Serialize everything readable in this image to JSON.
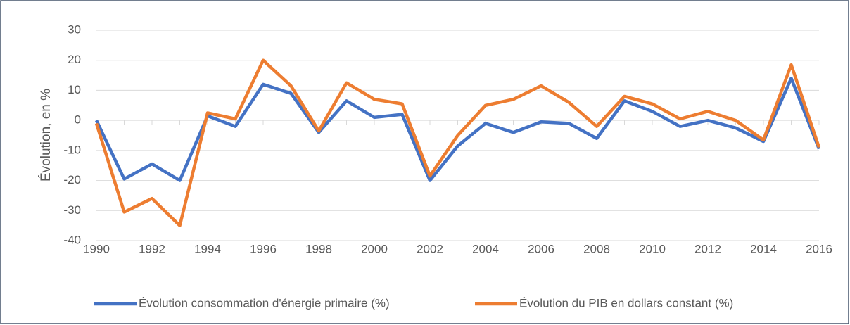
{
  "chart_data": {
    "type": "line",
    "y_label": "Évolution, en %",
    "x": [
      1990,
      1991,
      1992,
      1993,
      1994,
      1995,
      1996,
      1997,
      1998,
      1999,
      2000,
      2001,
      2002,
      2003,
      2004,
      2005,
      2006,
      2007,
      2008,
      2009,
      2010,
      2011,
      2012,
      2013,
      2014,
      2015,
      2016
    ],
    "series": [
      {
        "name": "Évolution consommation d'énergie primaire (%)",
        "color": "#4472c4",
        "values": [
          0,
          -19.5,
          -14.5,
          -20,
          1.5,
          -2,
          12,
          9,
          -4,
          6.5,
          1,
          2,
          -20,
          -8.5,
          -1,
          -4,
          -0.5,
          -1,
          -6,
          6.5,
          3,
          -2,
          0,
          -2.5,
          -7,
          14,
          -9.5
        ]
      },
      {
        "name": "Évolution du PIB en dollars constant (%)",
        "color": "#ed7d31",
        "values": [
          -1,
          -30.5,
          -26,
          -35,
          2.5,
          0.5,
          20,
          11.5,
          -3.5,
          12.5,
          7,
          5.5,
          -18.5,
          -5,
          5,
          7,
          11.5,
          6,
          -2,
          8,
          5.5,
          0.5,
          3,
          0,
          -6.5,
          18.5,
          -9
        ]
      }
    ],
    "xlim": [
      1990,
      2016
    ],
    "xticks": [
      1990,
      1992,
      1994,
      1996,
      1998,
      2000,
      2002,
      2004,
      2006,
      2008,
      2010,
      2012,
      2014,
      2016
    ],
    "ylim": [
      -40,
      30
    ],
    "yticks": [
      -40,
      -30,
      -20,
      -10,
      0,
      10,
      20,
      30
    ],
    "grid": true,
    "legend": "bottom"
  }
}
